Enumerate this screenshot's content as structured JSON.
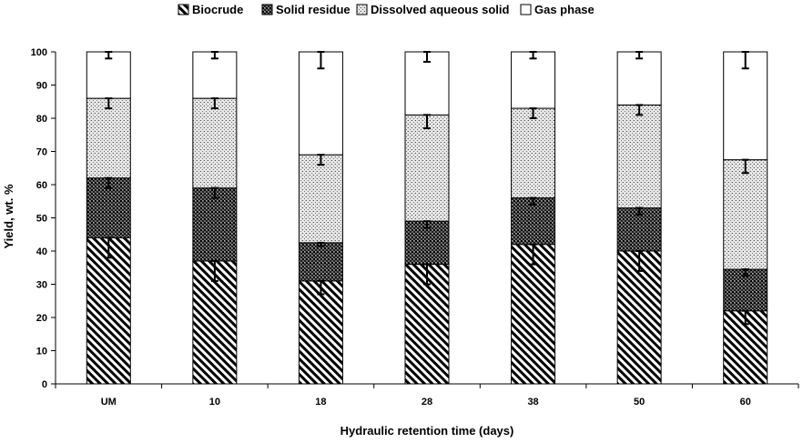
{
  "chart_data": {
    "type": "bar",
    "stacked": true,
    "categories": [
      "UM",
      "10",
      "18",
      "28",
      "38",
      "50",
      "60"
    ],
    "series": [
      {
        "name": "Biocrude",
        "pattern": "diagonal-hatch",
        "color": "#000000",
        "values": [
          44,
          37,
          31,
          36,
          42,
          40,
          22
        ],
        "errors": [
          3,
          3,
          2,
          3,
          3,
          3,
          2
        ]
      },
      {
        "name": "Solid residue",
        "pattern": "dense-dots",
        "color": "#000000",
        "values": [
          18,
          22,
          11.5,
          13,
          14,
          13,
          12.5
        ],
        "errors": [
          1.5,
          1.5,
          0.5,
          1,
          1,
          1,
          1
        ]
      },
      {
        "name": "Dissolved aqueous solid",
        "pattern": "light-dots",
        "color": "#000000",
        "values": [
          24,
          27,
          26.5,
          32,
          27,
          31,
          33
        ],
        "errors": [
          1.5,
          1.5,
          1.5,
          2,
          1.5,
          1.5,
          2
        ]
      },
      {
        "name": "Gas phase",
        "pattern": "none",
        "color": "#ffffff",
        "values": [
          14,
          14,
          31,
          19,
          17,
          16,
          32.5
        ],
        "errors": [
          1,
          1,
          2.5,
          1.5,
          1,
          1,
          2.5
        ]
      }
    ],
    "title": "",
    "xlabel": "Hydraulic retention time (days)",
    "ylabel": "Yield, wt. %",
    "ylim": [
      0,
      100
    ],
    "yticks": [
      0,
      10,
      20,
      30,
      40,
      50,
      60,
      70,
      80,
      90,
      100
    ],
    "grid": false,
    "legend_position": "top"
  }
}
